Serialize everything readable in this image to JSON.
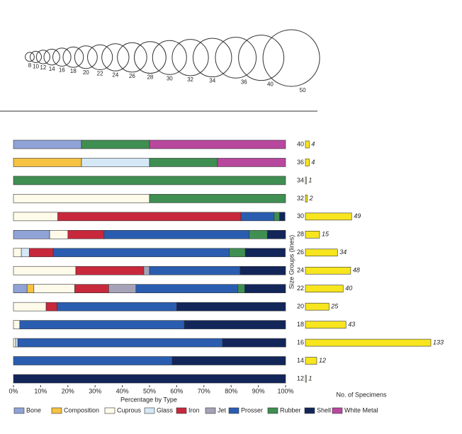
{
  "size_scale": {
    "sizes": [
      8,
      10,
      12,
      14,
      16,
      18,
      20,
      22,
      24,
      26,
      28,
      30,
      32,
      34,
      36,
      40,
      50
    ]
  },
  "chart_data": [
    {
      "type": "stacked_barh",
      "xlabel": "Percentage by Type",
      "ylabel": "Size Groups (lines)",
      "categories": [
        "40",
        "36",
        "34",
        "32",
        "30",
        "28",
        "26",
        "24",
        "22",
        "20",
        "18",
        "16",
        "14",
        "12"
      ],
      "xlim": [
        0,
        100
      ],
      "xticks": [
        {
          "value": 0,
          "label": "0%"
        },
        {
          "value": 10,
          "label": "10%"
        },
        {
          "value": 20,
          "label": "20%"
        },
        {
          "value": 30,
          "label": "30%"
        },
        {
          "value": 40,
          "label": "40%"
        },
        {
          "value": 50,
          "label": "50%"
        },
        {
          "value": 60,
          "label": "60%"
        },
        {
          "value": 70,
          "label": "70%"
        },
        {
          "value": 80,
          "label": "80%"
        },
        {
          "value": 90,
          "label": "90%"
        },
        {
          "value": 100,
          "label": "100%"
        }
      ],
      "legend": "bottom",
      "series": [
        {
          "name": "Bone",
          "color": "#8fa3d6",
          "values": [
            25,
            null,
            null,
            null,
            null,
            13.3,
            null,
            null,
            5,
            null,
            null,
            null,
            null,
            null
          ]
        },
        {
          "name": "Composition",
          "color": "#f5c242",
          "values": [
            null,
            25,
            null,
            null,
            null,
            null,
            null,
            null,
            2.5,
            null,
            null,
            null,
            null,
            null
          ]
        },
        {
          "name": "Cuprous",
          "color": "#fffbea",
          "values": [
            null,
            null,
            null,
            50,
            16.3,
            6.7,
            2.9,
            22.9,
            15,
            12,
            2.3,
            0.8,
            null,
            null
          ]
        },
        {
          "name": "Glass",
          "color": "#d5e8f8",
          "values": [
            null,
            25,
            null,
            null,
            null,
            null,
            2.9,
            null,
            null,
            null,
            null,
            0.8,
            null,
            null
          ]
        },
        {
          "name": "Iron",
          "color": "#c8283c",
          "values": [
            null,
            null,
            null,
            null,
            67.3,
            13.3,
            8.8,
            25,
            12.5,
            4,
            null,
            null,
            null,
            null
          ]
        },
        {
          "name": "Jet",
          "color": "#a6a3b8",
          "values": [
            null,
            null,
            null,
            null,
            null,
            null,
            null,
            2.1,
            10,
            null,
            null,
            null,
            null,
            null
          ]
        },
        {
          "name": "Prosser",
          "color": "#2a5db0",
          "values": [
            null,
            null,
            null,
            null,
            12.2,
            53.3,
            64.7,
            33.3,
            37.5,
            44,
            60.5,
            75.2,
            58.3,
            null
          ]
        },
        {
          "name": "Rubber",
          "color": "#3f8f52",
          "values": [
            25,
            25,
            100,
            50,
            2,
            6.7,
            5.9,
            null,
            2.5,
            null,
            null,
            null,
            null,
            null
          ]
        },
        {
          "name": "Shell",
          "color": "#12265a",
          "values": [
            null,
            null,
            null,
            null,
            2,
            6.7,
            14.7,
            16.7,
            15,
            40,
            37.2,
            23.3,
            41.7,
            100
          ]
        },
        {
          "name": "White Metal",
          "color": "#b8489e",
          "values": [
            50,
            25,
            null,
            null,
            null,
            null,
            null,
            null,
            null,
            null,
            null,
            null,
            null,
            null
          ]
        }
      ]
    },
    {
      "type": "barh",
      "xlabel": "No. of Specimens",
      "color": "#f7e51e",
      "xlim": [
        0,
        133
      ],
      "values": [
        4,
        4,
        1,
        2,
        49,
        15,
        34,
        48,
        40,
        25,
        43,
        133,
        12,
        1
      ]
    }
  ]
}
